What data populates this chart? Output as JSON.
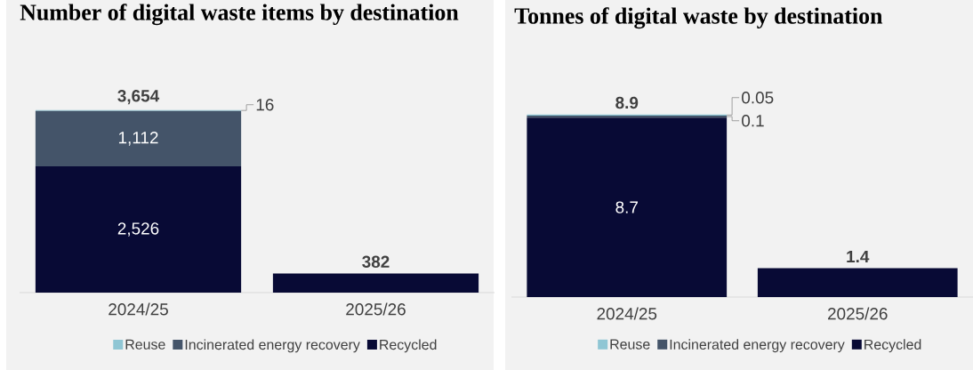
{
  "chart_data": [
    {
      "type": "bar",
      "title": "Number of digital waste items by destination",
      "stacked": true,
      "legend": "bottom",
      "categories": [
        "2024/25",
        "2025/26"
      ],
      "series": [
        {
          "name": "Recycled",
          "color": "#080a35",
          "values": [
            2526,
            382
          ],
          "value_labels": [
            "2,526",
            null
          ]
        },
        {
          "name": "Incinerated energy recovery",
          "color": "#445469",
          "values": [
            1112,
            null
          ],
          "value_labels": [
            "1,112",
            null
          ]
        },
        {
          "name": "Reuse",
          "color": "#8fc6d4",
          "values": [
            16,
            null
          ],
          "value_labels": [
            "16",
            null
          ]
        }
      ],
      "totals": [
        "3,654",
        "382"
      ]
    },
    {
      "type": "bar",
      "title": "Tonnes of digital waste by destination",
      "stacked": true,
      "legend": "bottom",
      "categories": [
        "2024/25",
        "2025/26"
      ],
      "series": [
        {
          "name": "Recycled",
          "color": "#080a35",
          "values": [
            8.7,
            1.4
          ],
          "value_labels": [
            "8.7",
            null
          ]
        },
        {
          "name": "Incinerated energy recovery",
          "color": "#445469",
          "values": [
            0.1,
            null
          ],
          "value_labels": [
            "0.1",
            null
          ]
        },
        {
          "name": "Reuse",
          "color": "#8fc6d4",
          "values": [
            0.05,
            null
          ],
          "value_labels": [
            "0.05",
            null
          ]
        }
      ],
      "totals": [
        "8.9",
        "1.4"
      ]
    }
  ]
}
